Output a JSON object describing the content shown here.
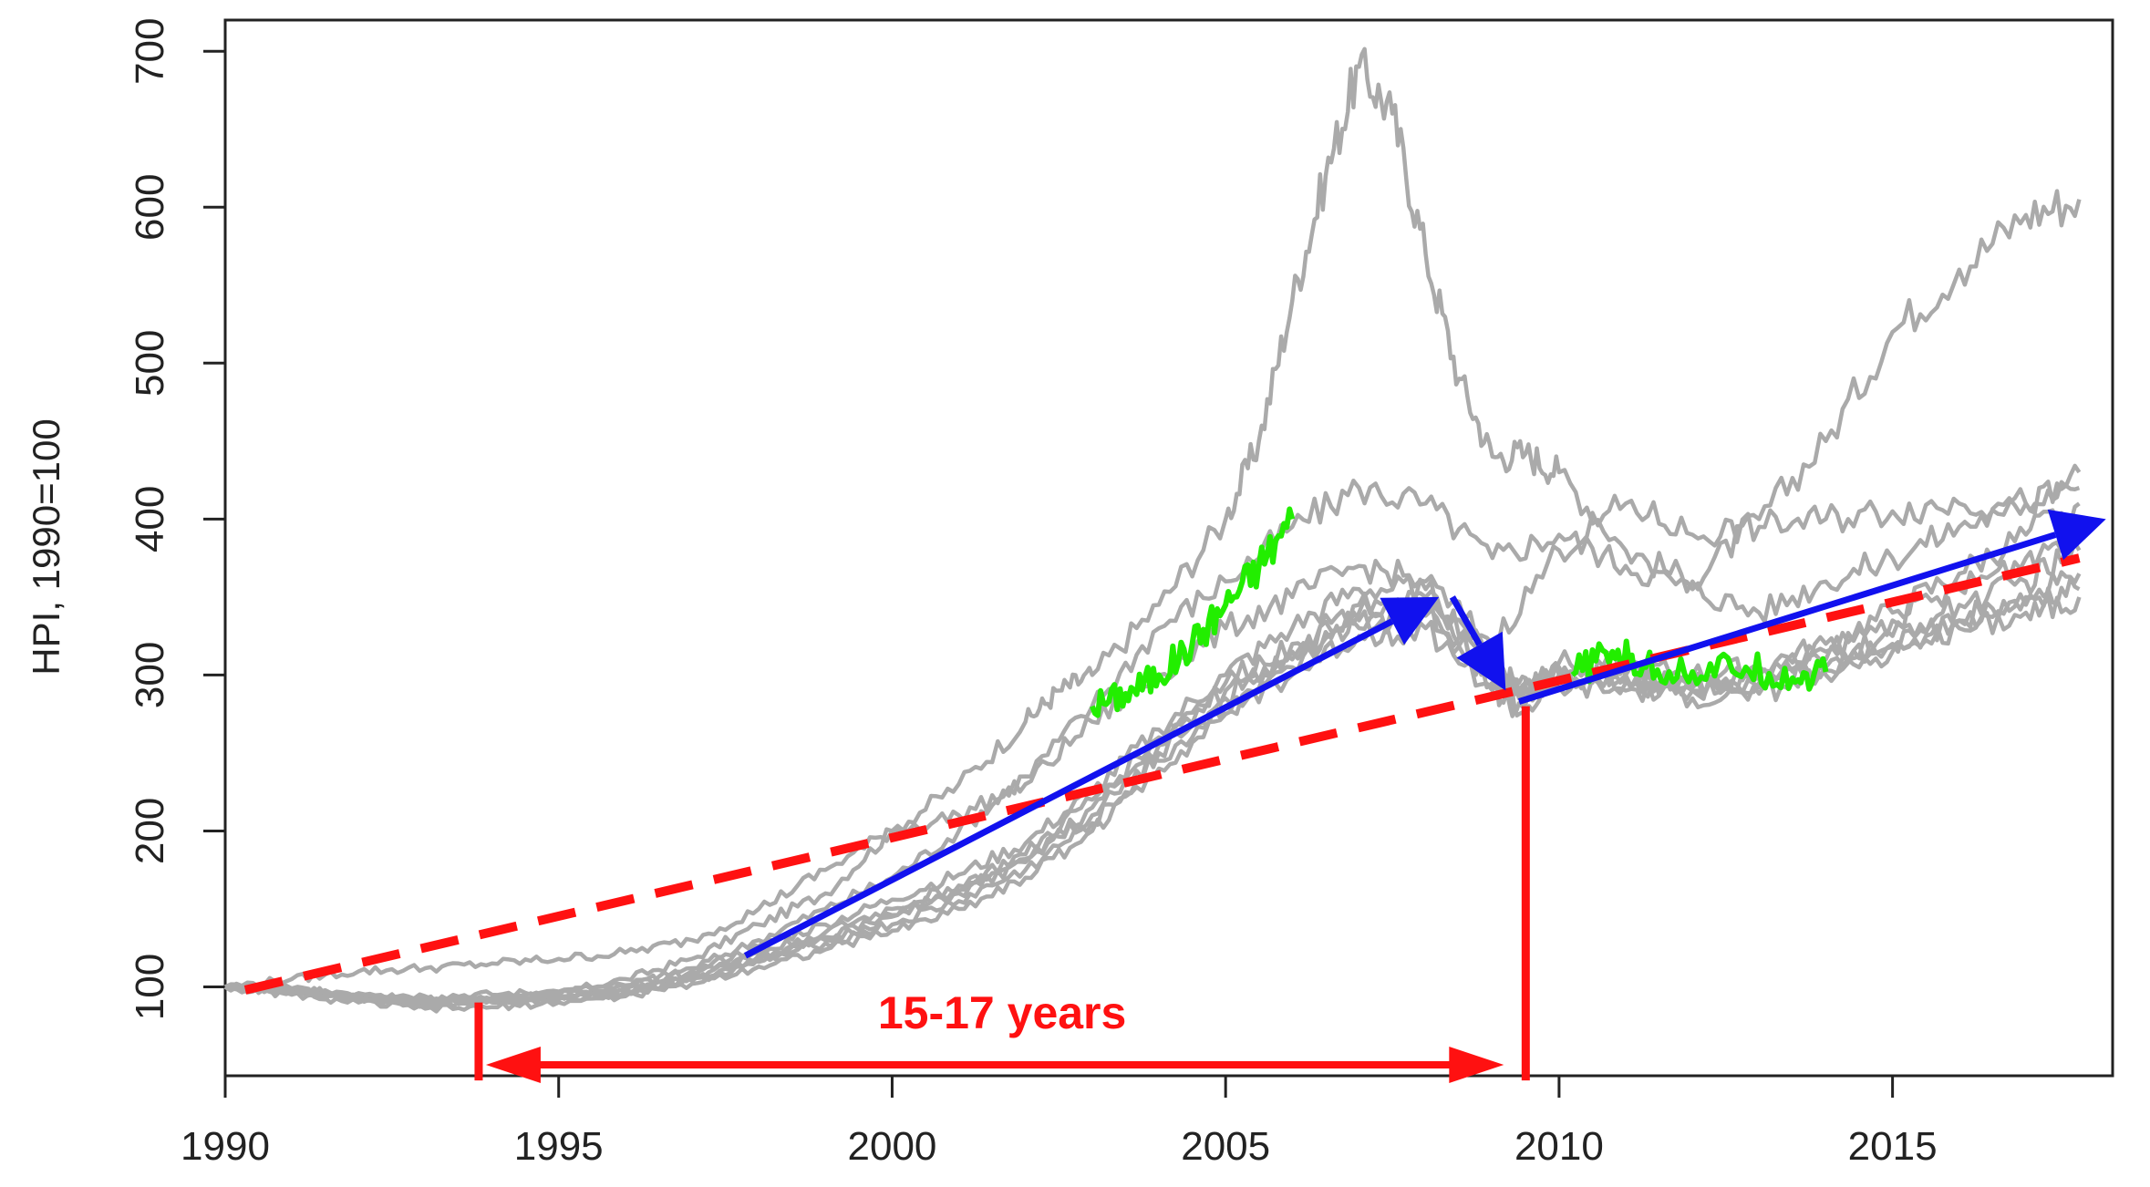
{
  "chart_data": {
    "type": "line",
    "title": "",
    "xlabel": "",
    "ylabel": "HPI, 1990=100",
    "xlim": [
      1990,
      2018.3
    ],
    "ylim": [
      43,
      720
    ],
    "x_ticks": [
      1990,
      1995,
      2000,
      2005,
      2010,
      2015
    ],
    "x_tick_labels": [
      "1990",
      "1995",
      "2000",
      "2005",
      "2010",
      "2015"
    ],
    "y_ticks": [
      100,
      200,
      300,
      400,
      500,
      600,
      700
    ],
    "y_tick_labels": [
      "100",
      "200",
      "300",
      "400",
      "500",
      "600",
      "700"
    ],
    "grid": false,
    "legend": "none",
    "colors": {
      "series": "#aaaaaa",
      "highlight": "#22ee00",
      "trend": "#ff1111",
      "arrows": "#1111ee",
      "axis": "#222222"
    },
    "series": [
      {
        "style": "gray",
        "x": [
          1990,
          1991,
          1992,
          1993,
          1994,
          1995,
          1996,
          1997,
          1998,
          1999,
          2000,
          2001,
          2002,
          2002.5,
          2003,
          2004,
          2005,
          2005.5,
          2006,
          2006.5,
          2007,
          2007.5,
          2008,
          2008.5,
          2009,
          2009.5,
          2010,
          2011,
          2012,
          2013,
          2014,
          2015,
          2016,
          2017,
          2017.8
        ],
        "y": [
          100,
          97,
          93,
          90,
          92,
          96,
          105,
          118,
          140,
          160,
          200,
          230,
          270,
          290,
          300,
          345,
          400,
          450,
          540,
          620,
          690,
          660,
          570,
          490,
          440,
          442,
          430,
          380,
          360,
          400,
          450,
          520,
          560,
          595,
          605
        ]
      },
      {
        "style": "gray",
        "x": [
          1990,
          1991,
          1992,
          1993,
          1994,
          1995,
          1996,
          1997,
          1998,
          1999,
          2000,
          2001,
          2002,
          2003,
          2004,
          2005,
          2006,
          2007,
          2008,
          2009,
          2010,
          2011,
          2012,
          2013,
          2014,
          2015,
          2016,
          2017,
          2017.8
        ],
        "y": [
          100,
          98,
          94,
          91,
          92,
          94,
          100,
          112,
          130,
          150,
          170,
          200,
          235,
          280,
          330,
          360,
          395,
          420,
          410,
          375,
          390,
          370,
          355,
          340,
          360,
          375,
          395,
          410,
          430
        ]
      },
      {
        "style": "gray",
        "x": [
          1990,
          1991,
          1992,
          1993,
          1994,
          1995,
          1996,
          1997,
          1998,
          1999,
          2000,
          2001,
          2002,
          2003,
          2004,
          2005,
          2006,
          2007,
          2008,
          2009,
          2010,
          2011,
          2012,
          2013,
          2014,
          2015,
          2016,
          2017,
          2017.8
        ],
        "y": [
          100,
          105,
          110,
          112,
          115,
          118,
          122,
          130,
          150,
          175,
          200,
          210,
          230,
          270,
          300,
          330,
          350,
          370,
          360,
          320,
          380,
          410,
          390,
          395,
          400,
          405,
          410,
          410,
          420
        ]
      },
      {
        "style": "gray",
        "x": [
          1990,
          1991,
          1992,
          1993,
          1994,
          1995,
          1996,
          1997,
          1998,
          1999,
          2000,
          2001,
          2002,
          2003,
          2004,
          2005,
          2006,
          2007,
          2008,
          2009,
          2009.4,
          2010,
          2011,
          2012,
          2013,
          2014,
          2015,
          2016,
          2017,
          2017.8
        ],
        "y": [
          100,
          97,
          93,
          90,
          91,
          93,
          97,
          105,
          118,
          130,
          145,
          160,
          180,
          215,
          255,
          290,
          315,
          340,
          345,
          300,
          290,
          305,
          300,
          295,
          300,
          315,
          335,
          355,
          375,
          395
        ]
      },
      {
        "style": "gray",
        "x": [
          1990,
          1991,
          1992,
          1993,
          1994,
          1995,
          1996,
          1997,
          1998,
          1999,
          2000,
          2001,
          2002,
          2003,
          2004,
          2005,
          2006,
          2007,
          2008,
          2009,
          2009.4,
          2010,
          2011,
          2012,
          2013,
          2014,
          2015,
          2016,
          2017,
          2017.8
        ],
        "y": [
          100,
          96,
          92,
          89,
          90,
          92,
          96,
          104,
          116,
          128,
          140,
          155,
          175,
          205,
          245,
          280,
          305,
          330,
          338,
          295,
          282,
          298,
          295,
          290,
          295,
          305,
          320,
          335,
          345,
          355
        ]
      },
      {
        "style": "gray",
        "x": [
          1990,
          1991,
          1992,
          1993,
          1994,
          1995,
          1996,
          1997,
          1998,
          1999,
          2000,
          2001,
          2002,
          2003,
          2004,
          2005,
          2006,
          2007,
          2008,
          2009,
          2009.4,
          2010,
          2011,
          2012,
          2013,
          2014,
          2015,
          2016,
          2017,
          2017.8
        ],
        "y": [
          100,
          98,
          95,
          92,
          93,
          95,
          99,
          108,
          122,
          135,
          150,
          165,
          185,
          220,
          260,
          295,
          320,
          345,
          350,
          305,
          285,
          300,
          300,
          292,
          297,
          310,
          325,
          345,
          360,
          380
        ]
      },
      {
        "style": "gray",
        "x": [
          1990,
          1991,
          1992,
          1993,
          1994,
          1995,
          1996,
          1997,
          1998,
          1999,
          2000,
          2001,
          2002,
          2003,
          2004,
          2005,
          2006,
          2007,
          2008,
          2009,
          2009.4,
          2010,
          2011,
          2012,
          2013,
          2014,
          2015,
          2016,
          2017,
          2017.8
        ],
        "y": [
          100,
          95,
          90,
          86,
          87,
          90,
          94,
          102,
          113,
          124,
          136,
          150,
          170,
          200,
          240,
          275,
          300,
          325,
          330,
          290,
          275,
          292,
          290,
          285,
          288,
          300,
          315,
          330,
          340,
          350
        ]
      },
      {
        "style": "gray",
        "x": [
          1990,
          1991,
          1992,
          1993,
          1994,
          1995,
          1996,
          1997,
          1998,
          1999,
          2000,
          2001,
          2002,
          2003,
          2004,
          2005,
          2006,
          2007,
          2008,
          2009,
          2009.4,
          2010,
          2011,
          2012,
          2013,
          2014,
          2015,
          2016,
          2017,
          2017.8
        ],
        "y": [
          100,
          97,
          94,
          91,
          92,
          94,
          98,
          106,
          120,
          132,
          146,
          162,
          182,
          210,
          250,
          285,
          310,
          335,
          342,
          300,
          288,
          300,
          297,
          290,
          292,
          303,
          318,
          335,
          350,
          365
        ]
      },
      {
        "style": "gray",
        "x": [
          1990,
          1991,
          1992,
          1993,
          1994,
          1995,
          1996,
          1997,
          1998,
          1999,
          2000,
          2001,
          2002,
          2003,
          2004,
          2005,
          2006,
          2007,
          2008,
          2009,
          2009.4,
          2010,
          2011,
          2012,
          2013,
          2014,
          2015,
          2016,
          2017,
          2017.8
        ],
        "y": [
          100,
          99,
          96,
          94,
          95,
          97,
          101,
          110,
          126,
          140,
          156,
          172,
          192,
          225,
          265,
          300,
          330,
          355,
          355,
          310,
          295,
          308,
          306,
          300,
          305,
          320,
          340,
          365,
          390,
          410
        ]
      },
      {
        "style": "green",
        "x": [
          2003,
          2003.5,
          2004,
          2004.5,
          2005,
          2005.5,
          2006
        ],
        "y": [
          280,
          288,
          300,
          320,
          345,
          370,
          400
        ]
      },
      {
        "style": "green",
        "x": [
          2010.2,
          2010.8,
          2011.3,
          2012,
          2012.8,
          2013.5,
          2014
        ],
        "y": [
          300,
          315,
          305,
          302,
          305,
          298,
          302
        ]
      }
    ],
    "trend_line": {
      "x": [
        1990.3,
        2017.8
      ],
      "y": [
        98,
        375
      ]
    },
    "arrows": [
      {
        "x": [
          1997.8,
          2008.2
        ],
        "y": [
          120,
          350
        ]
      },
      {
        "x": [
          2008.4,
          2009.2
        ],
        "y": [
          350,
          290
        ]
      },
      {
        "x": [
          2009.4,
          2018.2
        ],
        "y": [
          283,
          400
        ]
      }
    ],
    "vertical_markers": [
      {
        "x": 1993.8,
        "y": [
          90,
          40
        ]
      },
      {
        "x": 2009.5,
        "y": [
          280,
          40
        ]
      }
    ],
    "span": {
      "x": [
        1993.8,
        2009.5
      ],
      "y": 50,
      "label": "15-17 years"
    }
  }
}
